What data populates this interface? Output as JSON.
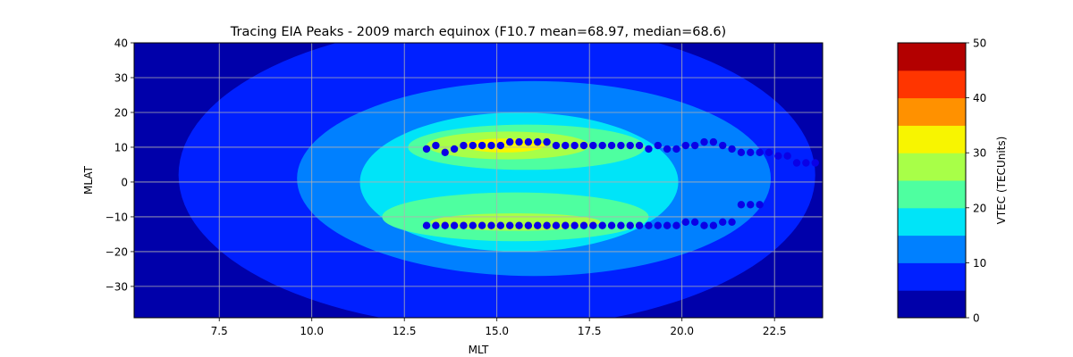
{
  "chart_data": [
    {
      "type": "heatmap",
      "subtype": "filled-contour-with-scatter",
      "title": "Tracing EIA Peaks - 2009 march equinox (F10.7 mean=68.97, median=68.6)",
      "xlabel": "MLT",
      "ylabel": "MLAT",
      "xlim": [
        5.2,
        23.8
      ],
      "ylim": [
        -39,
        40
      ],
      "xticks": [
        7.5,
        10.0,
        12.5,
        15.0,
        17.5,
        20.0,
        22.5
      ],
      "xtick_labels": [
        "7.5",
        "10.0",
        "12.5",
        "15.0",
        "17.5",
        "20.0",
        "22.5"
      ],
      "yticks": [
        -30,
        -20,
        -10,
        0,
        10,
        20,
        30,
        40
      ],
      "ytick_labels": [
        "−30",
        "−20",
        "−10",
        "0",
        "10",
        "20",
        "30",
        "40"
      ],
      "grid": true,
      "colormap": "jet",
      "contour_levels": [
        0,
        5,
        10,
        15,
        20,
        25,
        30,
        35,
        40,
        45,
        50
      ],
      "level_colors": [
        "#0000aa",
        "#0020ff",
        "#0080ff",
        "#00e4f8",
        "#4effa0",
        "#a8ff48",
        "#f8f500",
        "#ff9100",
        "#ff3500",
        "#b30000"
      ],
      "contour_regions": [
        {
          "level": 5,
          "cx": 15.0,
          "cy": 2,
          "rx": 8.6,
          "ry": 44
        },
        {
          "level": 10,
          "cx": 16.0,
          "cy": 1,
          "rx": 6.4,
          "ry": 28
        },
        {
          "level": 15,
          "cx": 15.6,
          "cy": 0,
          "rx": 4.3,
          "ry": 20
        },
        {
          "level": 20,
          "cx": 15.8,
          "cy": 10,
          "rx": 3.2,
          "ry": 6.5
        },
        {
          "level": 20,
          "cx": 15.5,
          "cy": -10,
          "rx": 3.6,
          "ry": 7
        },
        {
          "level": 25,
          "cx": 15.3,
          "cy": 10.5,
          "rx": 2.2,
          "ry": 4
        },
        {
          "level": 25,
          "cx": 15.5,
          "cy": -11.5,
          "rx": 2.3,
          "ry": 2.5
        },
        {
          "level": 30,
          "cx": 15.2,
          "cy": 10.5,
          "rx": 1.1,
          "ry": 2
        }
      ],
      "scatter": {
        "name": "EIA peaks",
        "color": "#0a00e6",
        "north_crest": {
          "x": [
            13.1,
            13.35,
            13.6,
            13.85,
            14.1,
            14.35,
            14.6,
            14.85,
            15.1,
            15.35,
            15.6,
            15.85,
            16.1,
            16.35,
            16.6,
            16.85,
            17.1,
            17.35,
            17.6,
            17.85,
            18.1,
            18.35,
            18.6,
            18.85,
            19.1,
            19.35,
            19.6,
            19.85,
            20.1,
            20.35,
            20.6,
            20.85,
            21.1,
            21.35,
            21.6,
            21.85,
            22.1,
            22.35,
            22.6,
            22.85,
            23.1,
            23.35,
            23.6
          ],
          "y": [
            9.5,
            10.5,
            8.5,
            9.5,
            10.5,
            10.5,
            10.5,
            10.5,
            10.5,
            11.5,
            11.5,
            11.5,
            11.5,
            11.5,
            10.5,
            10.5,
            10.5,
            10.5,
            10.5,
            10.5,
            10.5,
            10.5,
            10.5,
            10.5,
            9.5,
            10.5,
            9.5,
            9.5,
            10.5,
            10.5,
            11.5,
            11.5,
            10.5,
            9.5,
            8.5,
            8.5,
            8.5,
            8.5,
            7.5,
            7.5,
            5.5,
            5.5,
            5.5
          ]
        },
        "south_crest": {
          "x": [
            13.1,
            13.35,
            13.6,
            13.85,
            14.1,
            14.35,
            14.6,
            14.85,
            15.1,
            15.35,
            15.6,
            15.85,
            16.1,
            16.35,
            16.6,
            16.85,
            17.1,
            17.35,
            17.6,
            17.85,
            18.1,
            18.35,
            18.6,
            18.85,
            19.1,
            19.35,
            19.6,
            19.85,
            20.1,
            20.35,
            20.6,
            20.85,
            21.1,
            21.35,
            21.6,
            21.85,
            22.1
          ],
          "y": [
            -12.5,
            -12.5,
            -12.5,
            -12.5,
            -12.5,
            -12.5,
            -12.5,
            -12.5,
            -12.5,
            -12.5,
            -12.5,
            -12.5,
            -12.5,
            -12.5,
            -12.5,
            -12.5,
            -12.5,
            -12.5,
            -12.5,
            -12.5,
            -12.5,
            -12.5,
            -12.5,
            -12.5,
            -12.5,
            -12.5,
            -12.5,
            -12.5,
            -11.5,
            -11.5,
            -12.5,
            -12.5,
            -11.5,
            -11.5,
            -6.5,
            -6.5,
            -6.5
          ]
        }
      },
      "colorbar": {
        "label": "VTEC (TECUnits)",
        "ticks": [
          0,
          10,
          20,
          30,
          40,
          50
        ],
        "tick_labels": [
          "0",
          "10",
          "20",
          "30",
          "40",
          "50"
        ]
      }
    }
  ]
}
